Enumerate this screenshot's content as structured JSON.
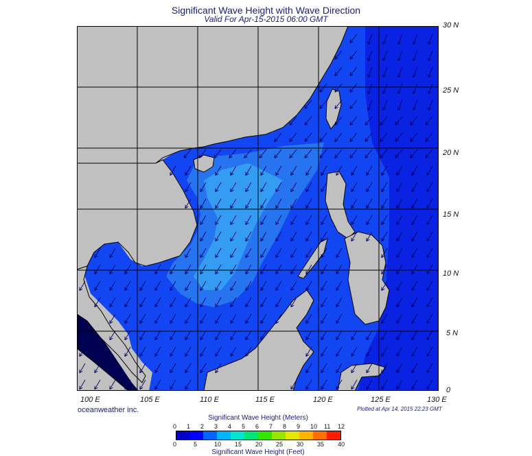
{
  "header": {
    "title": "Significant Wave Height with Wave Direction",
    "subtitle": "Valid For Apr-15-2015 06:00 GMT"
  },
  "map": {
    "lat_labels": [
      "30 N",
      "25 N",
      "20 N",
      "15 N",
      "10 N",
      "5 N",
      "0"
    ],
    "lon_labels": [
      "100 E",
      "105 E",
      "110 E",
      "115 E",
      "120 E",
      "125 E",
      "130 E"
    ],
    "land_color": "#c0c0c0",
    "ocean_colors": {
      "low": "#0000ff",
      "mid": "#1a5bf5",
      "high": "#2f9bf5",
      "dark": "#000040"
    },
    "arrow_color": "#000066",
    "dominant_wave_direction": "from north-east"
  },
  "footer": {
    "brand": "oceanweather inc.",
    "plotted": "Plotted at Apr 14, 2015 22:23 GMT"
  },
  "colorbar": {
    "meters_title": "Significant Wave Height (Meters)",
    "feet_title": "Significant Wave Height (Feet)",
    "meters_ticks": [
      "0",
      "1",
      "2",
      "3",
      "4",
      "5",
      "6",
      "7",
      "8",
      "9",
      "10",
      "11",
      "12"
    ],
    "feet_ticks": [
      "0",
      "5",
      "10",
      "15",
      "20",
      "25",
      "30",
      "35",
      "40"
    ],
    "colors": [
      "#0000c8",
      "#0000ff",
      "#0064ff",
      "#00b4ff",
      "#00e6d2",
      "#00e678",
      "#32e600",
      "#96e600",
      "#e6e600",
      "#ffb400",
      "#ff6e00",
      "#ff1e00"
    ]
  }
}
